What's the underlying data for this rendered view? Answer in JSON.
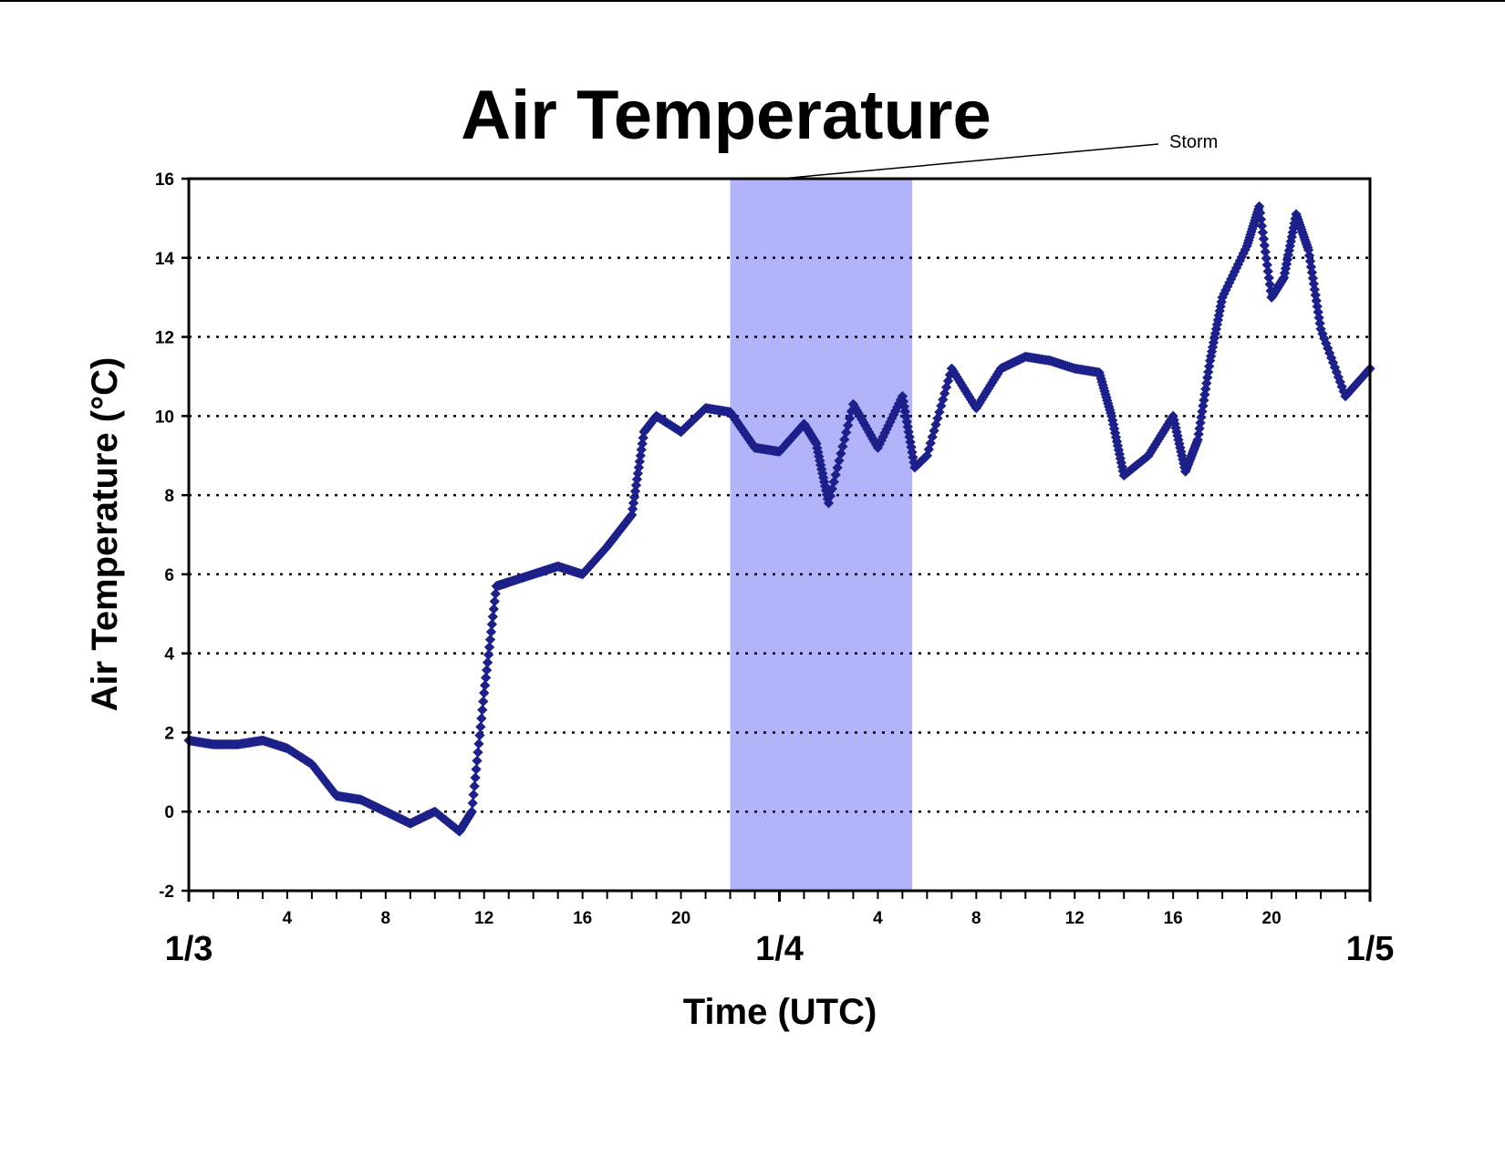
{
  "chart_data": {
    "type": "scatter",
    "title": "Air Temperature",
    "xlabel": "Time (UTC)",
    "ylabel": "Air Temperature (°C)",
    "ylim": [
      -2,
      16
    ],
    "yticks": [
      -2,
      0,
      2,
      4,
      6,
      8,
      10,
      12,
      14,
      16
    ],
    "xlim_hours": [
      0,
      48
    ],
    "hour_ticks": [
      {
        "hour": 4,
        "label": "4"
      },
      {
        "hour": 8,
        "label": "8"
      },
      {
        "hour": 12,
        "label": "12"
      },
      {
        "hour": 16,
        "label": "16"
      },
      {
        "hour": 20,
        "label": "20"
      },
      {
        "hour": 28,
        "label": "4"
      },
      {
        "hour": 32,
        "label": "8"
      },
      {
        "hour": 36,
        "label": "12"
      },
      {
        "hour": 40,
        "label": "16"
      },
      {
        "hour": 44,
        "label": "20"
      }
    ],
    "day_ticks": [
      {
        "hour": 0,
        "label": "1/3"
      },
      {
        "hour": 24,
        "label": "1/4"
      },
      {
        "hour": 48,
        "label": "1/5"
      }
    ],
    "grid": "horizontal dotted",
    "shaded_region": {
      "label": "Storm",
      "start_hour": 22,
      "end_hour": 29.4,
      "color": "#b3b3fa"
    },
    "marker_color": "#1c2088",
    "series": [
      {
        "x": [
          0,
          1,
          2,
          3,
          4,
          5,
          6,
          7,
          8,
          9,
          10,
          11,
          11.5,
          12,
          12.5,
          13,
          14,
          15,
          16,
          17,
          18,
          18.5,
          19,
          20,
          21,
          22,
          23,
          24,
          25,
          25.5,
          26,
          27,
          28,
          29,
          29.5,
          30,
          31,
          32,
          33,
          34,
          35,
          36,
          37,
          37.5,
          38,
          39,
          40,
          40.5,
          41,
          41.5,
          42,
          43,
          43.5,
          44,
          44.5,
          45,
          45.5,
          46,
          47,
          48
        ],
        "y": [
          1.8,
          1.7,
          1.7,
          1.8,
          1.6,
          1.2,
          0.4,
          0.3,
          0.0,
          -0.3,
          0.0,
          -0.5,
          0.0,
          3.0,
          5.7,
          5.8,
          6.0,
          6.2,
          6.0,
          6.7,
          7.5,
          9.6,
          10.0,
          9.6,
          10.2,
          10.1,
          9.2,
          9.1,
          9.8,
          9.3,
          7.8,
          10.3,
          9.2,
          10.5,
          8.7,
          9.0,
          11.2,
          10.2,
          11.2,
          11.5,
          11.4,
          11.2,
          11.1,
          10.0,
          8.5,
          9.0,
          10.0,
          8.6,
          9.4,
          11.4,
          13.0,
          14.3,
          15.3,
          13.0,
          13.5,
          15.1,
          14.2,
          12.2,
          10.5,
          11.2
        ]
      }
    ],
    "annotations": [
      {
        "text": "Storm"
      }
    ]
  }
}
